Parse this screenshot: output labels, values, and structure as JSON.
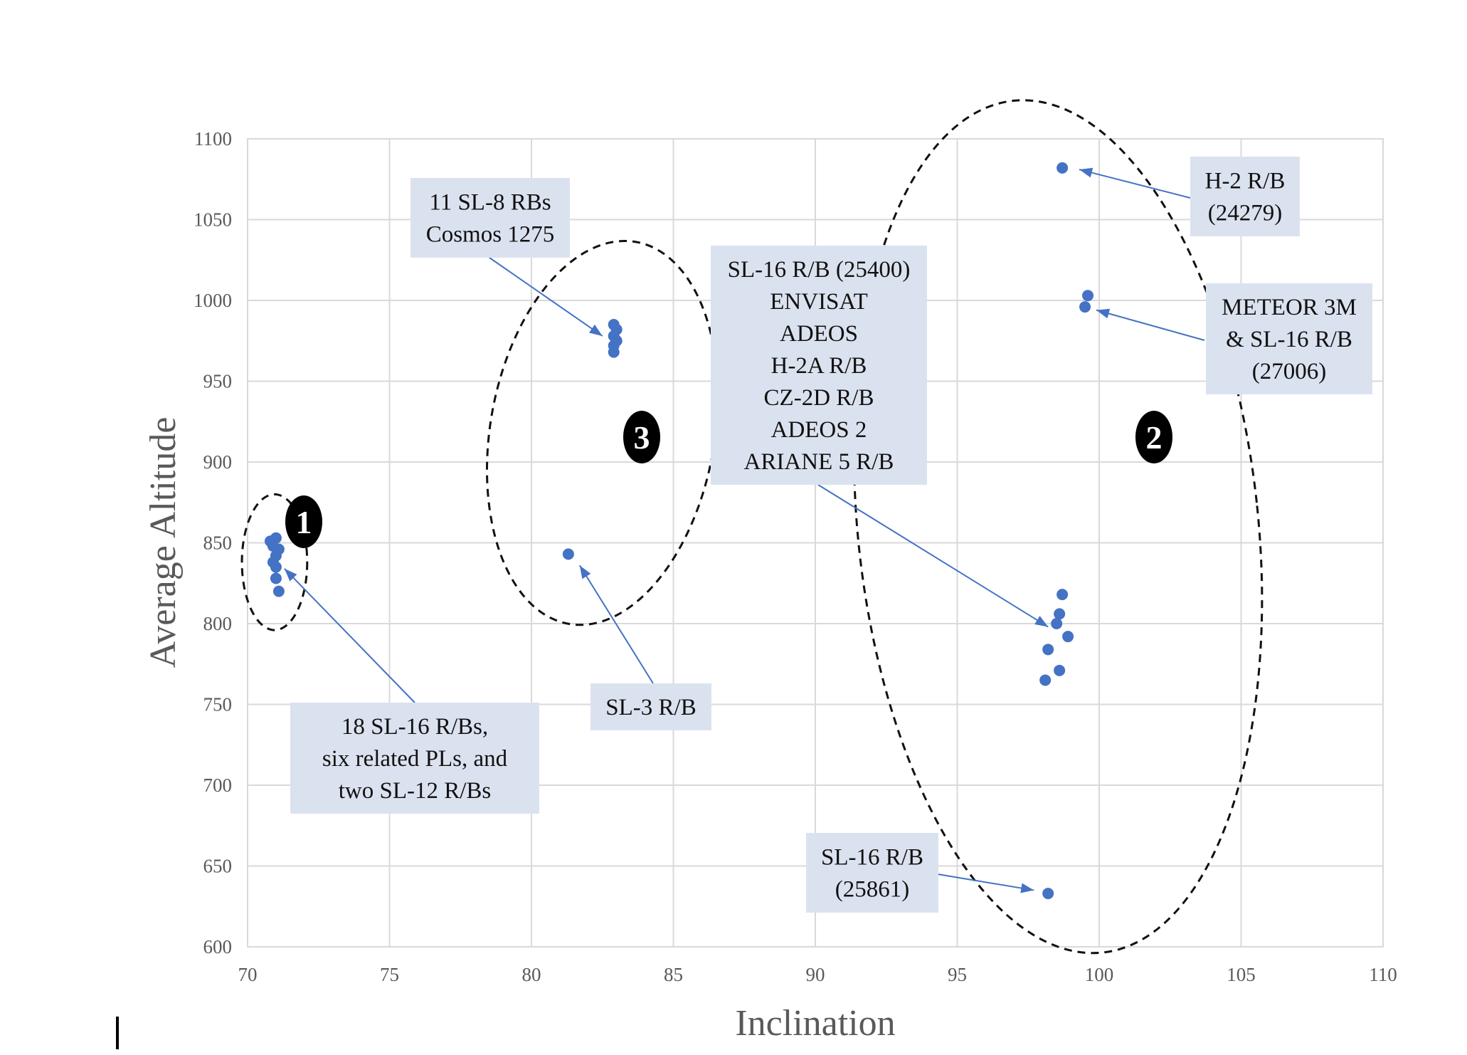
{
  "chart_data": {
    "type": "scatter",
    "xlabel": "Inclination",
    "ylabel": "Average Altitude",
    "xlim": [
      70,
      110
    ],
    "ylim": [
      600,
      1100
    ],
    "xticks": [
      70,
      75,
      80,
      85,
      90,
      95,
      100,
      105,
      110
    ],
    "yticks": [
      600,
      650,
      700,
      750,
      800,
      850,
      900,
      950,
      1000,
      1050,
      1100
    ],
    "grid": true,
    "marker_color": "#4472c4",
    "points": [
      {
        "x": 70.8,
        "y": 851
      },
      {
        "x": 70.9,
        "y": 848
      },
      {
        "x": 71.0,
        "y": 853
      },
      {
        "x": 71.1,
        "y": 846
      },
      {
        "x": 71.0,
        "y": 842
      },
      {
        "x": 70.9,
        "y": 838
      },
      {
        "x": 71.0,
        "y": 835
      },
      {
        "x": 71.0,
        "y": 828
      },
      {
        "x": 71.1,
        "y": 820
      },
      {
        "x": 82.9,
        "y": 985
      },
      {
        "x": 83.0,
        "y": 982
      },
      {
        "x": 82.9,
        "y": 978
      },
      {
        "x": 83.0,
        "y": 975
      },
      {
        "x": 82.9,
        "y": 972
      },
      {
        "x": 82.9,
        "y": 968
      },
      {
        "x": 81.3,
        "y": 843
      },
      {
        "x": 98.7,
        "y": 1082
      },
      {
        "x": 99.6,
        "y": 1003
      },
      {
        "x": 99.5,
        "y": 996
      },
      {
        "x": 98.7,
        "y": 818
      },
      {
        "x": 98.6,
        "y": 806
      },
      {
        "x": 98.5,
        "y": 800
      },
      {
        "x": 98.9,
        "y": 792
      },
      {
        "x": 98.2,
        "y": 784
      },
      {
        "x": 98.6,
        "y": 771
      },
      {
        "x": 98.1,
        "y": 765
      },
      {
        "x": 98.2,
        "y": 633
      }
    ],
    "annotations": [
      {
        "lines": [
          "18 SL-16 R/Bs,",
          "six related PLs, and",
          "two SL-12 R/Bs"
        ],
        "target": {
          "x": 71.3,
          "y": 834
        }
      },
      {
        "lines": [
          "11 SL-8 RBs",
          "Cosmos 1275"
        ],
        "target": {
          "x": 82.5,
          "y": 978
        }
      },
      {
        "lines": [
          "SL-3 R/B"
        ],
        "target": {
          "x": 81.7,
          "y": 836
        }
      },
      {
        "lines": [
          "SL-16 R/B (25400)",
          "ENVISAT",
          "ADEOS",
          "H-2A R/B",
          "CZ-2D R/B",
          "ADEOS 2",
          "ARIANE 5 R/B"
        ],
        "target": {
          "x": 98.2,
          "y": 798
        }
      },
      {
        "lines": [
          "H-2 R/B",
          "(24279)"
        ],
        "target": {
          "x": 99.3,
          "y": 1081
        }
      },
      {
        "lines": [
          "METEOR 3M",
          "& SL-16 R/B",
          "(27006)"
        ],
        "target": {
          "x": 99.9,
          "y": 994
        }
      },
      {
        "lines": [
          "SL-16 R/B",
          "(25861)"
        ],
        "target": {
          "x": 97.7,
          "y": 635
        }
      }
    ],
    "clusters": [
      {
        "label": "1",
        "center": {
          "x": 70.95,
          "y": 838
        },
        "half_width": 1.15,
        "half_height": 42
      },
      {
        "label": "2",
        "center": {
          "x": 98.55,
          "y": 860
        },
        "half_width": 7.05,
        "half_height": 265
      },
      {
        "label": "3",
        "center": {
          "x": 82.5,
          "y": 918
        },
        "half_width": 3.95,
        "half_height": 120
      }
    ]
  }
}
